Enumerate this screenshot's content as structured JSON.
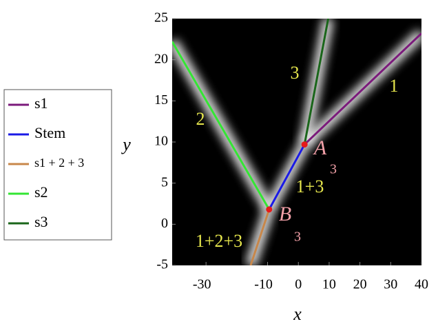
{
  "chart_data": {
    "type": "line",
    "xlabel": "x",
    "ylabel": "y",
    "xlim": [
      -41,
      40
    ],
    "ylim": [
      -5,
      25
    ],
    "xticks": [
      -30,
      -10,
      0,
      10,
      20,
      30,
      40
    ],
    "yticks": [
      -5,
      0,
      5,
      10,
      15,
      20,
      25
    ],
    "series": [
      {
        "name": "s1",
        "color": "#7b1a7b",
        "x": [
          2,
          40
        ],
        "values": [
          9.7,
          23.2
        ]
      },
      {
        "name": "Stem",
        "color": "#1a1ae6",
        "x": [
          -9.5,
          2
        ],
        "values": [
          1.8,
          9.7
        ]
      },
      {
        "name": "s1 + 2 + 3",
        "color": "#c8874a",
        "x": [
          -9.5,
          -15.5
        ],
        "values": [
          1.8,
          -5
        ]
      },
      {
        "name": "s2",
        "color": "#33e633",
        "x": [
          -9.5,
          -41
        ],
        "values": [
          1.8,
          22.2
        ]
      },
      {
        "name": "s3",
        "color": "#1a661a",
        "x": [
          2,
          9.7
        ],
        "values": [
          9.7,
          25
        ]
      }
    ],
    "points": {
      "color": "#e61a1a",
      "x": [
        2,
        -9.5
      ],
      "values": [
        9.7,
        1.8
      ]
    },
    "annotations": [
      {
        "text": "1",
        "color": "#e6e64d"
      },
      {
        "text": "2",
        "color": "#e6e64d"
      },
      {
        "text": "3",
        "color": "#e6e64d"
      },
      {
        "text": "1+3",
        "color": "#e6e64d"
      },
      {
        "text": "1+2+3",
        "color": "#e6e64d"
      },
      {
        "text": "A",
        "color": "#f2a0a8"
      },
      {
        "text": "3",
        "color": "#f2a0a8"
      },
      {
        "text": "B",
        "color": "#f2a0a8"
      },
      {
        "text": "3",
        "color": "#f2a0a8"
      }
    ]
  }
}
